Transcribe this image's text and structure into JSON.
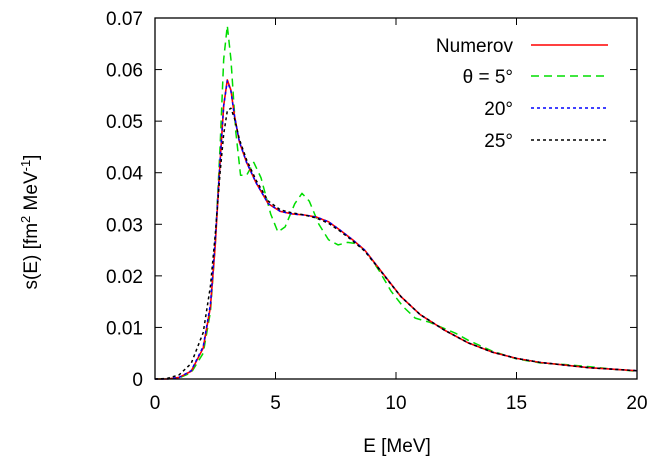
{
  "chart_data": {
    "type": "line",
    "xlabel": "E [MeV]",
    "ylabel": {
      "base": "s(E) [fm",
      "sup1": "2",
      "mid": " MeV",
      "sup2": "-1",
      "end": "]"
    },
    "xlim": [
      0,
      20
    ],
    "ylim": [
      0,
      0.07
    ],
    "xticks": [
      0,
      5,
      10,
      15,
      20
    ],
    "xtick_labels": [
      "0",
      "5",
      "10",
      "15",
      "20"
    ],
    "yticks": [
      0,
      0.01,
      0.02,
      0.03,
      0.04,
      0.05,
      0.06,
      0.07
    ],
    "ytick_labels": [
      "0",
      "0.01",
      "0.02",
      "0.03",
      "0.04",
      "0.05",
      "0.06",
      "0.07"
    ],
    "grid": false,
    "legend_position": "top-right",
    "series": [
      {
        "name": "Numerov",
        "color": "#ff0000",
        "dash": "solid",
        "points": [
          [
            0,
            0
          ],
          [
            0.5,
            0
          ],
          [
            1.0,
            0.0003
          ],
          [
            1.5,
            0.0015
          ],
          [
            2.0,
            0.006
          ],
          [
            2.3,
            0.014
          ],
          [
            2.5,
            0.026
          ],
          [
            2.7,
            0.042
          ],
          [
            2.85,
            0.053
          ],
          [
            3.0,
            0.058
          ],
          [
            3.15,
            0.056
          ],
          [
            3.3,
            0.051
          ],
          [
            3.5,
            0.046
          ],
          [
            3.8,
            0.042
          ],
          [
            4.2,
            0.038
          ],
          [
            4.7,
            0.034
          ],
          [
            5.2,
            0.0325
          ],
          [
            5.7,
            0.032
          ],
          [
            6.2,
            0.0318
          ],
          [
            6.7,
            0.0314
          ],
          [
            7.2,
            0.0305
          ],
          [
            7.7,
            0.0288
          ],
          [
            8.2,
            0.027
          ],
          [
            8.7,
            0.025
          ],
          [
            9.2,
            0.022
          ],
          [
            9.7,
            0.019
          ],
          [
            10.2,
            0.016
          ],
          [
            11,
            0.0125
          ],
          [
            12,
            0.0095
          ],
          [
            13,
            0.007
          ],
          [
            14,
            0.0052
          ],
          [
            15,
            0.004
          ],
          [
            16,
            0.0032
          ],
          [
            17,
            0.0027
          ],
          [
            18,
            0.0022
          ],
          [
            19,
            0.0019
          ],
          [
            20,
            0.0016
          ]
        ]
      },
      {
        "name": "θ =  5°",
        "color": "#00dd00",
        "dash": "dashed",
        "points": [
          [
            0,
            0
          ],
          [
            0.5,
            0
          ],
          [
            1.0,
            0.0002
          ],
          [
            1.5,
            0.0012
          ],
          [
            2.0,
            0.005
          ],
          [
            2.3,
            0.013
          ],
          [
            2.5,
            0.026
          ],
          [
            2.7,
            0.045
          ],
          [
            2.85,
            0.062
          ],
          [
            3.0,
            0.0685
          ],
          [
            3.15,
            0.062
          ],
          [
            3.35,
            0.048
          ],
          [
            3.55,
            0.0395
          ],
          [
            3.8,
            0.0395
          ],
          [
            4.1,
            0.042
          ],
          [
            4.4,
            0.039
          ],
          [
            4.8,
            0.032
          ],
          [
            5.1,
            0.0285
          ],
          [
            5.4,
            0.0295
          ],
          [
            5.8,
            0.034
          ],
          [
            6.1,
            0.036
          ],
          [
            6.4,
            0.0345
          ],
          [
            6.8,
            0.03
          ],
          [
            7.2,
            0.027
          ],
          [
            7.6,
            0.026
          ],
          [
            8.0,
            0.0265
          ],
          [
            8.4,
            0.0262
          ],
          [
            8.8,
            0.0245
          ],
          [
            9.3,
            0.021
          ],
          [
            9.8,
            0.017
          ],
          [
            10.3,
            0.014
          ],
          [
            10.8,
            0.0118
          ],
          [
            11.4,
            0.011
          ],
          [
            12,
            0.0098
          ],
          [
            12.5,
            0.0088
          ],
          [
            13,
            0.0075
          ],
          [
            14,
            0.0054
          ],
          [
            15,
            0.0039
          ],
          [
            16,
            0.0031
          ],
          [
            17,
            0.0028
          ],
          [
            18,
            0.0024
          ],
          [
            19,
            0.0019
          ],
          [
            20,
            0.0015
          ]
        ]
      },
      {
        "name": "20°",
        "color": "#0000ff",
        "dash": "dotted",
        "points": [
          [
            0,
            0
          ],
          [
            0.5,
            0
          ],
          [
            1.0,
            0.0003
          ],
          [
            1.5,
            0.0016
          ],
          [
            2.0,
            0.0063
          ],
          [
            2.3,
            0.0145
          ],
          [
            2.5,
            0.027
          ],
          [
            2.7,
            0.0425
          ],
          [
            2.85,
            0.053
          ],
          [
            3.0,
            0.0578
          ],
          [
            3.15,
            0.0558
          ],
          [
            3.3,
            0.051
          ],
          [
            3.5,
            0.046
          ],
          [
            3.8,
            0.042
          ],
          [
            4.2,
            0.038
          ],
          [
            4.7,
            0.034
          ],
          [
            5.2,
            0.0325
          ],
          [
            5.7,
            0.032
          ],
          [
            6.2,
            0.0318
          ],
          [
            6.7,
            0.0314
          ],
          [
            7.2,
            0.0305
          ],
          [
            7.7,
            0.0288
          ],
          [
            8.2,
            0.027
          ],
          [
            8.7,
            0.025
          ],
          [
            9.2,
            0.022
          ],
          [
            9.7,
            0.019
          ],
          [
            10.2,
            0.016
          ],
          [
            11,
            0.0125
          ],
          [
            12,
            0.0095
          ],
          [
            13,
            0.007
          ],
          [
            14,
            0.0052
          ],
          [
            15,
            0.004
          ],
          [
            16,
            0.0032
          ],
          [
            17,
            0.0027
          ],
          [
            18,
            0.0022
          ],
          [
            19,
            0.0019
          ],
          [
            20,
            0.0016
          ]
        ]
      },
      {
        "name": "25°",
        "color": "#000000",
        "dash": "dotted",
        "points": [
          [
            0,
            0
          ],
          [
            0.5,
            0.0001
          ],
          [
            1.0,
            0.0008
          ],
          [
            1.5,
            0.003
          ],
          [
            2.0,
            0.009
          ],
          [
            2.3,
            0.018
          ],
          [
            2.5,
            0.028
          ],
          [
            2.7,
            0.04
          ],
          [
            2.85,
            0.0475
          ],
          [
            3.0,
            0.052
          ],
          [
            3.15,
            0.0525
          ],
          [
            3.3,
            0.0505
          ],
          [
            3.5,
            0.0465
          ],
          [
            3.8,
            0.0425
          ],
          [
            4.2,
            0.0385
          ],
          [
            4.7,
            0.0345
          ],
          [
            5.2,
            0.0328
          ],
          [
            5.7,
            0.0322
          ],
          [
            6.2,
            0.0318
          ],
          [
            6.7,
            0.0312
          ],
          [
            7.2,
            0.0302
          ],
          [
            7.7,
            0.0286
          ],
          [
            8.2,
            0.0268
          ],
          [
            8.7,
            0.0248
          ],
          [
            9.2,
            0.0219
          ],
          [
            9.7,
            0.0189
          ],
          [
            10.2,
            0.016
          ],
          [
            11,
            0.0125
          ],
          [
            12,
            0.0095
          ],
          [
            13,
            0.007
          ],
          [
            14,
            0.0052
          ],
          [
            15,
            0.004
          ],
          [
            16,
            0.0032
          ],
          [
            17,
            0.0027
          ],
          [
            18,
            0.0022
          ],
          [
            19,
            0.0019
          ],
          [
            20,
            0.0016
          ]
        ]
      }
    ]
  }
}
